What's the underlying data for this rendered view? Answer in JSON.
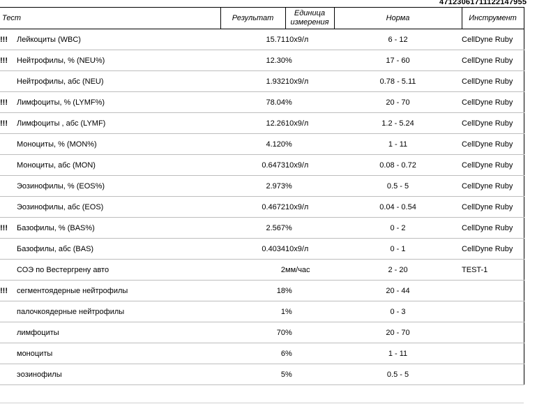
{
  "barcode_number": "47123061711122147955",
  "header": {
    "test": "Тест",
    "result": "Результат",
    "unit_line1": "Единица",
    "unit_line2": "измерения",
    "norm": "Норма",
    "instrument": "Инструмент"
  },
  "rows": [
    {
      "flag": "!!!",
      "name": "Лейкоциты (WBC)",
      "result": "15.71",
      "unit": "10x9/л",
      "norm": "6 - 12",
      "instrument": "CellDyne Ruby"
    },
    {
      "flag": "!!!",
      "name": "Нейтрофилы, % (NEU%)",
      "result": "12.30",
      "unit": "%",
      "norm": "17 - 60",
      "instrument": "CellDyne Ruby"
    },
    {
      "flag": "",
      "name": "Нейтрофилы, абс (NEU)",
      "result": "1.932",
      "unit": "10x9/л",
      "norm": "0.78 - 5.11",
      "instrument": "CellDyne Ruby"
    },
    {
      "flag": "!!!",
      "name": "Лимфоциты, % (LYMF%)",
      "result": "78.04",
      "unit": "%",
      "norm": "20 - 70",
      "instrument": "CellDyne Ruby"
    },
    {
      "flag": "!!!",
      "name": "Лимфоциты , абс (LYMF)",
      "result": "12.26",
      "unit": "10x9/л",
      "norm": "1.2 - 5.24",
      "instrument": "CellDyne Ruby"
    },
    {
      "flag": "",
      "name": "Моноциты, % (MON%)",
      "result": "4.120",
      "unit": "%",
      "norm": "1 - 11",
      "instrument": "CellDyne Ruby"
    },
    {
      "flag": "",
      "name": "Моноциты, абс (MON)",
      "result": "0.6473",
      "unit": "10x9/л",
      "norm": "0.08 - 0.72",
      "instrument": "CellDyne Ruby"
    },
    {
      "flag": "",
      "name": "Эозинофилы, % (EOS%)",
      "result": "2.973",
      "unit": "%",
      "norm": "0.5 - 5",
      "instrument": "CellDyne Ruby"
    },
    {
      "flag": "",
      "name": "Эозинофилы, абс (EOS)",
      "result": "0.4672",
      "unit": "10x9/л",
      "norm": "0.04 - 0.54",
      "instrument": "CellDyne Ruby"
    },
    {
      "flag": "!!!",
      "name": "Базофилы, % (BAS%)",
      "result": "2.567",
      "unit": "%",
      "norm": "0 - 2",
      "instrument": "CellDyne Ruby"
    },
    {
      "flag": "",
      "name": "Базофилы, абс (BAS)",
      "result": "0.4034",
      "unit": "10x9/л",
      "norm": "0 - 1",
      "instrument": "CellDyne Ruby"
    },
    {
      "flag": "",
      "name": "СОЭ по Вестергрену авто",
      "result": "2",
      "unit": "мм/час",
      "norm": "2 - 20",
      "instrument": "TEST-1"
    },
    {
      "flag": "!!!",
      "name": "сегментоядерные нейтрофилы",
      "result": "18",
      "unit": "%",
      "norm": "20 - 44",
      "instrument": ""
    },
    {
      "flag": "",
      "name": "палочкоядерные нейтрофилы",
      "result": "1",
      "unit": "%",
      "norm": "0 - 3",
      "instrument": ""
    },
    {
      "flag": "",
      "name": "лимфоциты",
      "result": "70",
      "unit": "%",
      "norm": "20 - 70",
      "instrument": ""
    },
    {
      "flag": "",
      "name": "моноциты",
      "result": "6",
      "unit": "%",
      "norm": "1 - 11",
      "instrument": ""
    },
    {
      "flag": "",
      "name": "эозинофилы",
      "result": "5",
      "unit": "%",
      "norm": "0.5 - 5",
      "instrument": ""
    }
  ]
}
